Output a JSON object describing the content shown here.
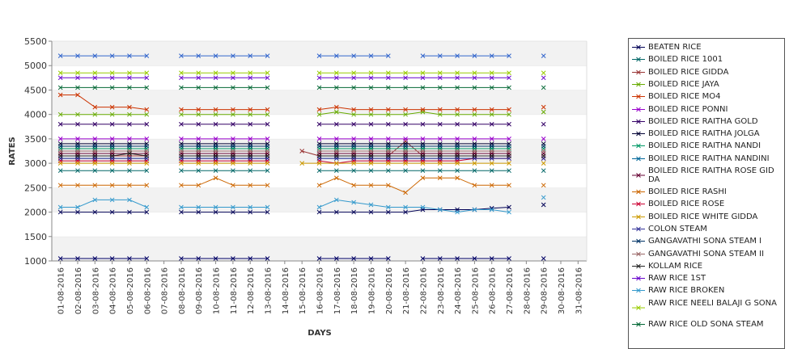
{
  "chart_data": {
    "type": "line",
    "title": "",
    "xlabel": "DAYS",
    "ylabel": "RATES",
    "ylim": [
      1000,
      5500
    ],
    "yticks": [
      1000,
      1500,
      2000,
      2500,
      3000,
      3500,
      4000,
      4500,
      5000,
      5500
    ],
    "grid": "horizontal alternating bands",
    "legend_position": "right",
    "x": [
      "01-08-2016",
      "02-08-2016",
      "03-08-2016",
      "04-08-2016",
      "05-08-2016",
      "06-08-2016",
      "07-08-2016",
      "08-08-2016",
      "09-08-2016",
      "10-08-2016",
      "11-08-2016",
      "12-08-2016",
      "13-08-2016",
      "14-08-2016",
      "15-08-2016",
      "16-08-2016",
      "17-08-2016",
      "18-08-2016",
      "19-08-2016",
      "20-08-2016",
      "21-08-2016",
      "22-08-2016",
      "23-08-2016",
      "24-08-2016",
      "25-08-2016",
      "26-08-2016",
      "27-08-2016",
      "28-08-2016",
      "29-08-2016",
      "30-08-2016",
      "31-08-2016"
    ],
    "series": [
      {
        "name": "BEATEN RICE",
        "color": "#000055",
        "values": [
          2000,
          2000,
          2000,
          2000,
          2000,
          2000,
          null,
          2000,
          2000,
          2000,
          2000,
          2000,
          2000,
          null,
          null,
          2000,
          2000,
          2000,
          2000,
          2000,
          2000,
          2050,
          2050,
          2050,
          2050,
          2080,
          2100,
          null,
          2150,
          null,
          null
        ]
      },
      {
        "name": "BOILED RICE 1001",
        "color": "#006666",
        "values": [
          2850,
          2850,
          2850,
          2850,
          2850,
          2850,
          null,
          2850,
          2850,
          2850,
          2850,
          2850,
          2850,
          null,
          null,
          2850,
          2850,
          2850,
          2850,
          2850,
          2850,
          2850,
          2850,
          2850,
          2850,
          2850,
          2850,
          null,
          2850,
          null,
          null
        ]
      },
      {
        "name": "BOILED RICE GIDDA",
        "color": "#993333",
        "values": [
          3150,
          3150,
          3150,
          3150,
          3150,
          3150,
          null,
          3150,
          3150,
          3150,
          3150,
          3150,
          3150,
          null,
          3250,
          3150,
          3150,
          3150,
          3150,
          3150,
          3450,
          3150,
          3150,
          3150,
          3150,
          3150,
          3150,
          null,
          3150,
          null,
          null
        ]
      },
      {
        "name": "BOILED RICE JAYA",
        "color": "#66aa00",
        "values": [
          4000,
          4000,
          4000,
          4000,
          4000,
          4000,
          null,
          4000,
          4000,
          4000,
          4000,
          4000,
          4000,
          null,
          null,
          4000,
          4050,
          4000,
          4000,
          4000,
          4000,
          4050,
          4000,
          4000,
          4000,
          4000,
          4000,
          null,
          4050,
          null,
          null
        ]
      },
      {
        "name": "BOILED RICE MO4",
        "color": "#cc3300",
        "values": [
          4400,
          4400,
          4150,
          4150,
          4150,
          4100,
          null,
          4100,
          4100,
          4100,
          4100,
          4100,
          4100,
          null,
          null,
          4100,
          4150,
          4100,
          4100,
          4100,
          4100,
          4100,
          4100,
          4100,
          4100,
          4100,
          4100,
          null,
          4150,
          null,
          null
        ]
      },
      {
        "name": "BOILED RICE PONNI",
        "color": "#9900cc",
        "values": [
          3500,
          3500,
          3500,
          3500,
          3500,
          3500,
          null,
          3500,
          3500,
          3500,
          3500,
          3500,
          3500,
          null,
          null,
          3500,
          3500,
          3500,
          3500,
          3500,
          3500,
          3500,
          3500,
          3500,
          3500,
          3500,
          3500,
          null,
          3500,
          null,
          null
        ]
      },
      {
        "name": "BOILED RICE RAITHA GOLD",
        "color": "#330066",
        "values": [
          3800,
          3800,
          3800,
          3800,
          3800,
          3800,
          null,
          3800,
          3800,
          3800,
          3800,
          3800,
          3800,
          null,
          null,
          3800,
          3800,
          3800,
          3800,
          3800,
          3800,
          3800,
          3800,
          3800,
          3800,
          3800,
          3800,
          null,
          3800,
          null,
          null
        ]
      },
      {
        "name": "BOILED RICE RAITHA JOLGA",
        "color": "#000033",
        "values": [
          3400,
          3400,
          3400,
          3400,
          3400,
          3400,
          null,
          3400,
          3400,
          3400,
          3400,
          3400,
          3400,
          null,
          null,
          3400,
          3400,
          3400,
          3400,
          3400,
          3400,
          3400,
          3400,
          3400,
          3400,
          3400,
          3400,
          null,
          3400,
          null,
          null
        ]
      },
      {
        "name": "BOILED RICE RAITHA NANDI",
        "color": "#009966",
        "values": [
          3300,
          3300,
          3300,
          3300,
          3300,
          3300,
          null,
          3300,
          3300,
          3300,
          3300,
          3300,
          3300,
          null,
          null,
          3300,
          3300,
          3300,
          3300,
          3300,
          3300,
          3300,
          3300,
          3300,
          3300,
          3300,
          3300,
          null,
          3300,
          null,
          null
        ]
      },
      {
        "name": "BOILED RICE RAITHA NANDINI",
        "color": "#006699",
        "values": [
          3100,
          3100,
          3100,
          3100,
          3100,
          3100,
          null,
          3100,
          3100,
          3100,
          3100,
          3100,
          3100,
          null,
          null,
          3100,
          3100,
          3100,
          3100,
          3100,
          3100,
          3100,
          3100,
          3100,
          3100,
          3100,
          3100,
          null,
          3100,
          null,
          null
        ]
      },
      {
        "name": "BOILED RICE RAITHA ROSE GIDDA",
        "color": "#660033",
        "values": [
          3200,
          3200,
          3200,
          3200,
          3200,
          3200,
          null,
          3200,
          3200,
          3200,
          3200,
          3200,
          3200,
          null,
          null,
          3200,
          3200,
          3200,
          3200,
          3200,
          3200,
          3200,
          3200,
          3200,
          3200,
          3200,
          3200,
          null,
          3200,
          null,
          null
        ]
      },
      {
        "name": "BOILED RICE RASHI",
        "color": "#cc6600",
        "values": [
          2550,
          2550,
          2550,
          2550,
          2550,
          2550,
          null,
          2550,
          2550,
          2700,
          2550,
          2550,
          2550,
          null,
          null,
          2550,
          2700,
          2550,
          2550,
          2550,
          2400,
          2700,
          2700,
          2700,
          2550,
          2550,
          2550,
          null,
          2550,
          null,
          null
        ]
      },
      {
        "name": "BOILED RICE ROSE",
        "color": "#cc0033",
        "values": [
          3050,
          3050,
          3050,
          3050,
          3050,
          3050,
          null,
          3050,
          3050,
          3050,
          3050,
          3050,
          3050,
          null,
          null,
          3050,
          3000,
          3050,
          3050,
          3050,
          3050,
          3050,
          3050,
          3050,
          3100,
          3100,
          3100,
          null,
          3100,
          null,
          null
        ]
      },
      {
        "name": "BOILED RICE WHITE GIDDA",
        "color": "#cc9900",
        "values": [
          3000,
          3000,
          3000,
          3000,
          3000,
          3000,
          null,
          3000,
          3000,
          3000,
          3000,
          3000,
          3000,
          null,
          3000,
          3000,
          3000,
          3000,
          3000,
          3000,
          3000,
          3000,
          3000,
          3000,
          3000,
          3000,
          3000,
          null,
          3000,
          null,
          null
        ]
      },
      {
        "name": "COLON STEAM",
        "color": "#333399",
        "values": [
          3100,
          3100,
          3100,
          3100,
          3100,
          3100,
          null,
          3100,
          3100,
          3100,
          3100,
          3100,
          3100,
          null,
          null,
          3100,
          3100,
          3100,
          3100,
          3100,
          3100,
          3100,
          3100,
          3100,
          3100,
          3100,
          3100,
          null,
          3100,
          null,
          null
        ]
      },
      {
        "name": "GANGAVATHI SONA STEAM I",
        "color": "#003366",
        "values": [
          3350,
          3350,
          3350,
          3350,
          3350,
          3350,
          null,
          3350,
          3350,
          3350,
          3350,
          3350,
          3350,
          null,
          null,
          3350,
          3350,
          3350,
          3350,
          3350,
          3350,
          3350,
          3350,
          3350,
          3350,
          3350,
          3350,
          null,
          3350,
          null,
          null
        ]
      },
      {
        "name": "GANGAVATHI SONA STEAM II",
        "color": "#996666",
        "values": [
          3250,
          3250,
          3250,
          3250,
          3250,
          3250,
          null,
          3250,
          3250,
          3250,
          3250,
          3250,
          3250,
          null,
          null,
          3250,
          3250,
          3250,
          3250,
          3250,
          3250,
          3250,
          3250,
          3250,
          3250,
          3250,
          3250,
          null,
          3250,
          null,
          null
        ]
      },
      {
        "name": "KOLLAM RICE",
        "color": "#222222",
        "values": [
          3150,
          3150,
          3150,
          3150,
          3200,
          3150,
          null,
          3150,
          3150,
          3150,
          3150,
          3150,
          3150,
          null,
          null,
          3150,
          3150,
          3150,
          3150,
          3150,
          3150,
          3150,
          3150,
          3150,
          3150,
          3150,
          3150,
          null,
          3150,
          null,
          null
        ]
      },
      {
        "name": "RAW RICE 1ST",
        "color": "#6600cc",
        "values": [
          4750,
          4750,
          4750,
          4750,
          4750,
          4750,
          null,
          4750,
          4750,
          4750,
          4750,
          4750,
          4750,
          null,
          null,
          4750,
          4750,
          4750,
          4750,
          4750,
          4750,
          4750,
          4750,
          4750,
          4750,
          4750,
          4750,
          null,
          4750,
          null,
          null
        ]
      },
      {
        "name": "RAW RICE BROKEN",
        "color": "#3399cc",
        "values": [
          2100,
          2100,
          2250,
          2250,
          2250,
          2100,
          null,
          2100,
          2100,
          2100,
          2100,
          2100,
          2100,
          null,
          null,
          2100,
          2250,
          2200,
          2150,
          2100,
          2100,
          2100,
          2050,
          2000,
          2050,
          2050,
          2000,
          null,
          2300,
          null,
          null
        ]
      },
      {
        "name": "RAW RICE NEELI BALAJI G SONA",
        "color": "#99cc00",
        "values": [
          4850,
          4850,
          4850,
          4850,
          4850,
          4850,
          null,
          4850,
          4850,
          4850,
          4850,
          4850,
          4850,
          null,
          null,
          4850,
          4850,
          4850,
          4850,
          4850,
          4850,
          4850,
          4850,
          4850,
          4850,
          4850,
          4850,
          null,
          4850,
          null,
          null
        ]
      },
      {
        "name": "RAW RICE OLD SONA STEAM",
        "color": "#006633",
        "values": [
          4550,
          4550,
          4550,
          4550,
          4550,
          4550,
          null,
          4550,
          4550,
          4550,
          4550,
          4550,
          4550,
          null,
          null,
          4550,
          4550,
          4550,
          4550,
          4550,
          4550,
          4550,
          4550,
          4550,
          4550,
          4550,
          4550,
          null,
          4550,
          null,
          null
        ]
      },
      {
        "name": "",
        "color": "#3366cc",
        "values": [
          5200,
          5200,
          5200,
          5200,
          5200,
          5200,
          null,
          5200,
          5200,
          5200,
          5200,
          5200,
          5200,
          null,
          null,
          5200,
          5200,
          5200,
          5200,
          5200,
          null,
          5200,
          5200,
          5200,
          5200,
          5200,
          5200,
          null,
          5200,
          null,
          null
        ]
      },
      {
        "name": "",
        "color": "#000066",
        "values": [
          1050,
          1050,
          1050,
          1050,
          1050,
          1050,
          null,
          1050,
          1050,
          1050,
          1050,
          1050,
          1050,
          null,
          null,
          1050,
          1050,
          1050,
          1050,
          1050,
          null,
          1050,
          1050,
          1050,
          1050,
          1050,
          1050,
          null,
          1050,
          null,
          null
        ]
      }
    ]
  }
}
